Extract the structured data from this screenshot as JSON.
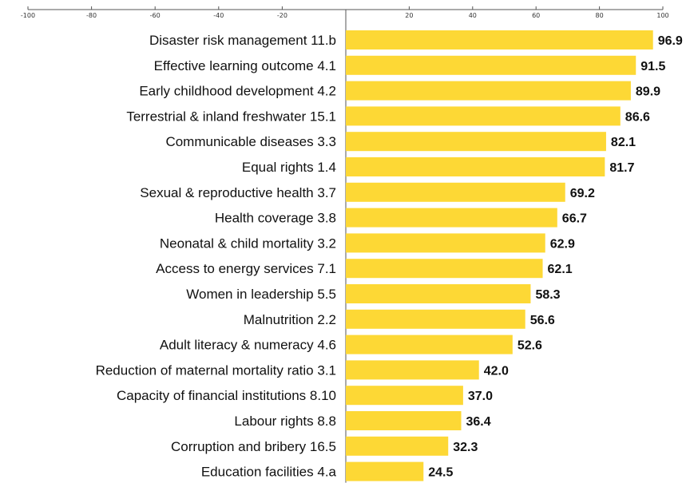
{
  "chart_data": {
    "type": "bar",
    "orientation": "horizontal",
    "categories": [
      "Disaster risk management 11.b",
      "Effective learning outcome 4.1",
      "Early childhood development 4.2",
      "Terrestrial & inland freshwater 15.1",
      "Communicable diseases 3.3",
      "Equal rights 1.4",
      "Sexual & reproductive health 3.7",
      "Health coverage 3.8",
      "Neonatal & child mortality 3.2",
      "Access to energy services 7.1",
      "Women in leadership 5.5",
      "Malnutrition 2.2",
      "Adult literacy & numeracy 4.6",
      "Reduction of maternal mortality ratio 3.1",
      "Capacity of financial institutions 8.10",
      "Labour rights 8.8",
      "Corruption and bribery 16.5",
      "Education facilities 4.a"
    ],
    "values": [
      96.9,
      91.5,
      89.9,
      86.6,
      82.1,
      81.7,
      69.2,
      66.7,
      62.9,
      62.1,
      58.3,
      56.6,
      52.6,
      42.0,
      37.0,
      36.4,
      32.3,
      24.5
    ],
    "value_labels": [
      "96.9",
      "91.5",
      "89.9",
      "86.6",
      "82.1",
      "81.7",
      "69.2",
      "66.7",
      "62.9",
      "62.1",
      "58.3",
      "56.6",
      "52.6",
      "42.0",
      "37.0",
      "36.4",
      "32.3",
      "24.5"
    ],
    "xlim": [
      -100,
      100
    ],
    "x_ticks": [
      -100,
      -80,
      -60,
      -40,
      -20,
      20,
      40,
      60,
      80,
      100
    ],
    "x_axis_position": "top",
    "grid": false,
    "title": "",
    "xlabel": "",
    "ylabel": "",
    "colors": {
      "bar": "#FDD835",
      "axis": "#555555"
    }
  }
}
